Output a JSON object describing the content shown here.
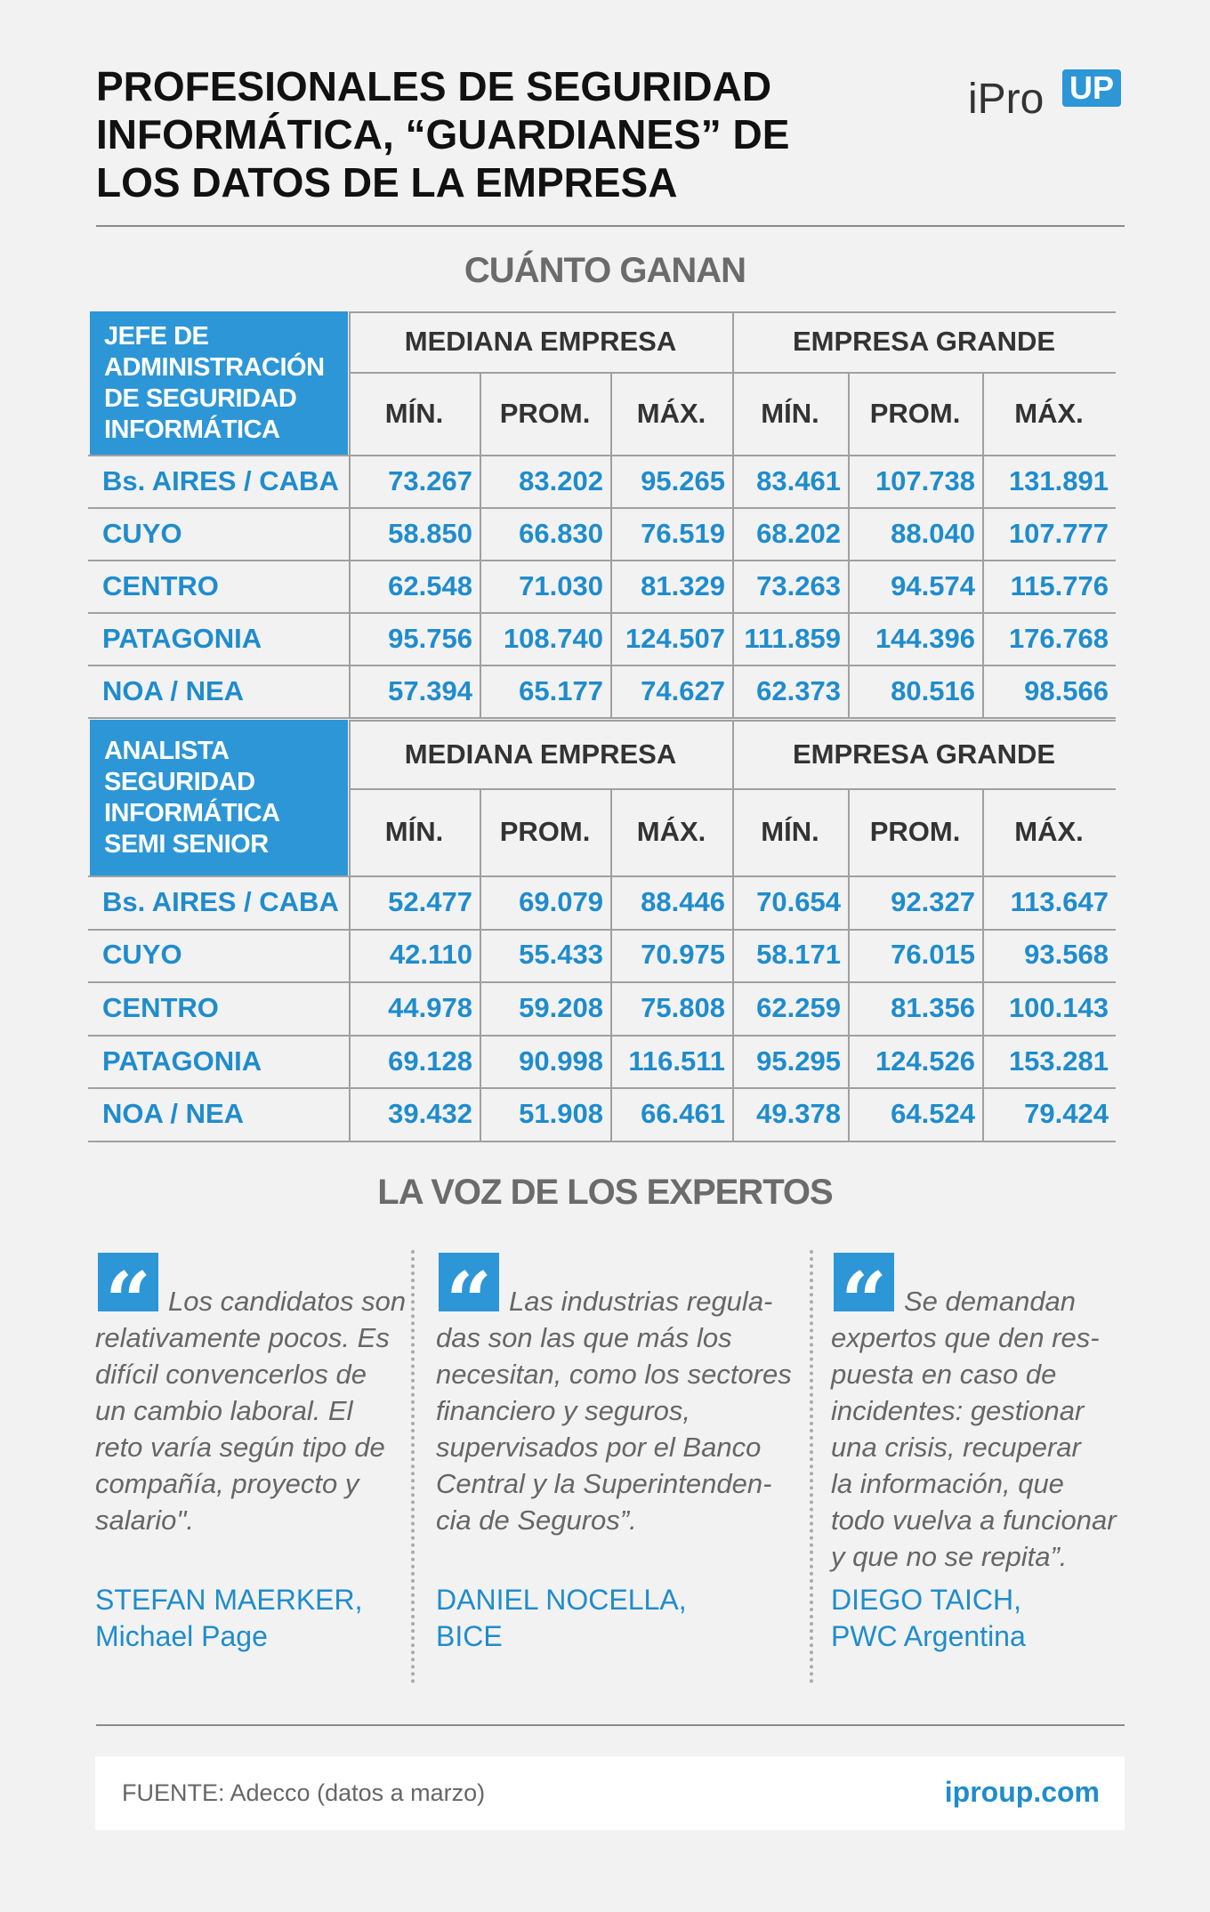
{
  "header": {
    "title_lines": [
      "PROFESIONALES DE SEGURIDAD",
      "INFORMÁTICA, “GUARDIANES” DE",
      "LOS DATOS DE LA EMPRESA"
    ],
    "logo": "iPro",
    "logo_badge": "UP"
  },
  "section_title": "CUÁNTO GANAN",
  "tables": [
    {
      "role_lines": [
        "JEFE DE",
        "ADMINISTRACIÓN",
        "DE SEGURIDAD",
        "INFORMÁTICA"
      ],
      "groups": [
        "MEDIANA EMPRESA",
        "EMPRESA GRANDE"
      ],
      "columns": [
        "MÍN.",
        "PROM.",
        "MÁX.",
        "MÍN.",
        "PROM.",
        "MÁX."
      ],
      "rows": [
        [
          "Bs. AIRES / CABA",
          "73.267",
          "83.202",
          "95.265",
          "83.461",
          "107.738",
          "131.891"
        ],
        [
          "CUYO",
          "58.850",
          "66.830",
          "76.519",
          "68.202",
          "88.040",
          "107.777"
        ],
        [
          "CENTRO",
          "62.548",
          "71.030",
          "81.329",
          "73.263",
          "94.574",
          "115.776"
        ],
        [
          "PATAGONIA",
          "95.756",
          "108.740",
          "124.507",
          "111.859",
          "144.396",
          "176.768"
        ],
        [
          "NOA / NEA",
          "57.394",
          "65.177",
          "74.627",
          "62.373",
          "80.516",
          "98.566"
        ]
      ]
    },
    {
      "role_lines": [
        "ANALISTA",
        "SEGURIDAD",
        "INFORMÁTICA",
        "SEMI SENIOR"
      ],
      "groups": [
        "MEDIANA EMPRESA",
        "EMPRESA GRANDE"
      ],
      "columns": [
        "MÍN.",
        "PROM.",
        "MÁX.",
        "MÍN.",
        "PROM.",
        "MÁX."
      ],
      "rows": [
        [
          "Bs. AIRES / CABA",
          "52.477",
          "69.079",
          "88.446",
          "70.654",
          "92.327",
          "113.647"
        ],
        [
          "CUYO",
          "42.110",
          "55.433",
          "70.975",
          "58.171",
          "76.015",
          "93.568"
        ],
        [
          "CENTRO",
          "44.978",
          "59.208",
          "75.808",
          "62.259",
          "81.356",
          "100.143"
        ],
        [
          "PATAGONIA",
          "69.128",
          "90.998",
          "116.511",
          "95.295",
          "124.526",
          "153.281"
        ],
        [
          "NOA / NEA",
          "39.432",
          "51.908",
          "66.461",
          "49.378",
          "64.524",
          "79.424"
        ]
      ]
    }
  ],
  "experts_title": "LA VOZ DE LOS EXPERTOS",
  "quotes": [
    {
      "lines": [
        "Los candidatos son",
        "relativamente pocos. Es",
        "difícil convencerlos de",
        "un cambio laboral. El",
        "reto varía según tipo de",
        "compañía, proyecto y",
        "salario\"."
      ],
      "author_lines": [
        "STEFAN MAERKER,",
        "Michael Page"
      ]
    },
    {
      "lines": [
        "Las industrias regula-",
        "das son las que más los",
        "necesitan, como los sectores",
        "financiero y seguros,",
        "supervisados por el Banco",
        "Central y la Superintenden-",
        "cia de Seguros”."
      ],
      "author_lines": [
        "DANIEL NOCELLA,",
        "BICE"
      ]
    },
    {
      "lines": [
        "Se demandan",
        "expertos que den res-",
        "puesta en caso de",
        "incidentes: gestionar",
        "una crisis, recuperar",
        "la información, que",
        "todo vuelva a funcionar",
        "y que no se repita”."
      ],
      "author_lines": [
        "DIEGO TAICH,",
        "PWC Argentina"
      ]
    }
  ],
  "footer": {
    "source": "FUENTE: Adecco (datos a marzo)",
    "site": "iproup.com"
  }
}
